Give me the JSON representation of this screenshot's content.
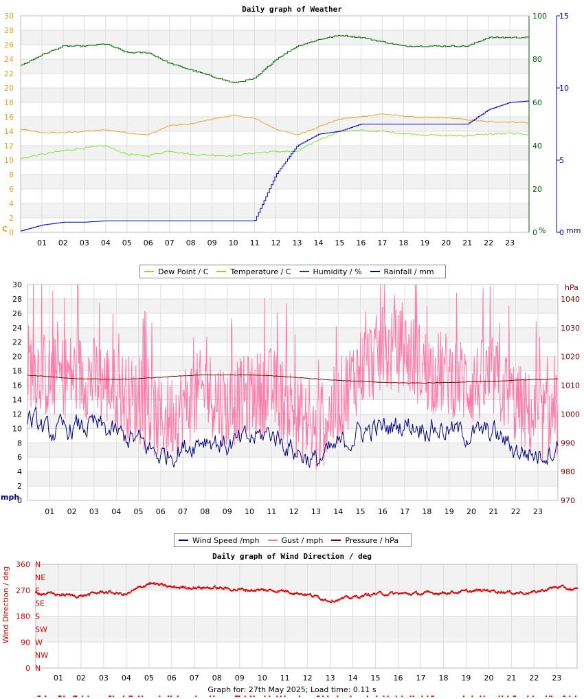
{
  "hours": [
    "01",
    "02",
    "03",
    "04",
    "05",
    "06",
    "07",
    "08",
    "09",
    "10",
    "11",
    "12",
    "13",
    "14",
    "15",
    "16",
    "17",
    "18",
    "19",
    "20",
    "21",
    "22",
    "23"
  ],
  "weather": {
    "title": "Daily graph of Weather",
    "left_unit": "C",
    "humidity_unit": "%",
    "rain_unit": "mm",
    "temp_ticks": [
      0,
      2,
      4,
      6,
      8,
      10,
      12,
      14,
      16,
      18,
      20,
      22,
      24,
      26,
      28,
      30
    ],
    "humidity_ticks": [
      0,
      20,
      40,
      60,
      80,
      100
    ],
    "rain_ticks": [
      0,
      5,
      10,
      15
    ],
    "legend": [
      {
        "label": "Dew Point / C",
        "color": "#80e030"
      },
      {
        "label": "Temperature / C",
        "color": "#f0a020"
      },
      {
        "label": "Humidity / %",
        "color": "#006400"
      },
      {
        "label": "Rainfall / mm",
        "color": "#0000c0"
      }
    ],
    "colors": {
      "temperature": "#f0a020",
      "dewpoint": "#80e030",
      "humidity": "#006400",
      "rainfall": "#0000c0",
      "left_axis": "#f0a020",
      "humidity_axis": "#006400",
      "rain_axis": "#0000c0"
    }
  },
  "wind": {
    "left_unit": "mph",
    "right_unit": "hPa",
    "speed_ticks": [
      0,
      2,
      4,
      6,
      8,
      10,
      12,
      14,
      16,
      18,
      20,
      22,
      24,
      26,
      28,
      30
    ],
    "pressure_ticks": [
      970,
      980,
      990,
      1000,
      1010,
      1020,
      1030,
      1040
    ],
    "legend": [
      {
        "label": "Wind Speed /mph",
        "color": "#000080"
      },
      {
        "label": "Gust / mph",
        "color": "#ff7aa8"
      },
      {
        "label": "Pressure / hPa",
        "color": "#800000"
      }
    ],
    "colors": {
      "speed": "#000080",
      "gust": "#ff7aa8",
      "pressure": "#800000"
    }
  },
  "direction": {
    "title": "Daily graph of Wind Direction / deg",
    "axis_label": "Wind Direction / deg",
    "deg_ticks": [
      0,
      90,
      180,
      270,
      360
    ],
    "compass": [
      "N",
      "NE",
      "E",
      "SE",
      "S",
      "SW",
      "W",
      "NW",
      "N"
    ],
    "color": "#e00000"
  },
  "footer": "Graph for: 27th May 2025; Load time: 0.11 s",
  "chart_data": [
    {
      "type": "line",
      "title": "Daily graph of Weather",
      "xlabel": "",
      "x": [
        0,
        1,
        2,
        3,
        4,
        5,
        6,
        7,
        8,
        9,
        10,
        11,
        12,
        13,
        14,
        15,
        16,
        17,
        18,
        19,
        20,
        21,
        22,
        23,
        23.9
      ],
      "ylim_left": [
        0,
        30
      ],
      "ylim_humidity": [
        0,
        100
      ],
      "ylim_rain": [
        0,
        15
      ],
      "series": [
        {
          "name": "Temperature / C",
          "axis": "left",
          "values": [
            14.3,
            13.8,
            13.8,
            14.0,
            14.2,
            13.8,
            13.5,
            14.8,
            15.0,
            15.7,
            16.2,
            15.8,
            14.3,
            13.5,
            14.6,
            15.7,
            16.0,
            16.4,
            16.1,
            15.9,
            15.9,
            15.6,
            15.3,
            15.3,
            15.2
          ]
        },
        {
          "name": "Dew Point / C",
          "axis": "left",
          "values": [
            10.2,
            10.8,
            11.3,
            11.7,
            12.0,
            10.8,
            10.6,
            11.3,
            10.8,
            10.7,
            10.6,
            11.0,
            11.2,
            11.2,
            12.8,
            14.0,
            14.1,
            14.0,
            13.7,
            13.5,
            13.4,
            13.4,
            13.6,
            13.7,
            13.6
          ]
        },
        {
          "name": "Humidity / %",
          "axis": "humidity",
          "values": [
            77,
            82,
            86,
            86,
            87,
            83,
            83,
            78,
            75,
            72,
            69,
            71,
            80,
            86,
            89,
            91,
            90,
            88,
            86,
            86,
            86,
            86,
            90,
            90,
            90
          ]
        },
        {
          "name": "Rainfall / mm",
          "axis": "rain",
          "values": [
            0.1,
            0.5,
            0.7,
            0.7,
            0.8,
            0.8,
            0.8,
            0.8,
            0.8,
            0.8,
            0.8,
            0.8,
            4.0,
            6.0,
            6.8,
            7.0,
            7.5,
            7.5,
            7.5,
            7.5,
            7.5,
            7.5,
            8.5,
            9.0,
            9.1
          ]
        }
      ]
    },
    {
      "type": "line",
      "title": "",
      "x": [
        0,
        1,
        2,
        3,
        4,
        5,
        6,
        7,
        8,
        9,
        10,
        11,
        12,
        13,
        14,
        15,
        16,
        17,
        18,
        19,
        20,
        21,
        22,
        23,
        23.9
      ],
      "ylim_left": [
        0,
        30
      ],
      "ylim_right": [
        970,
        1045
      ],
      "series": [
        {
          "name": "Wind Speed /mph",
          "axis": "left",
          "values": [
            11.5,
            9.3,
            10.0,
            10.4,
            9.2,
            8.2,
            6.2,
            7.2,
            8.8,
            7.6,
            8.5,
            9.4,
            7.0,
            5.3,
            7.5,
            9.5,
            10.0,
            10.6,
            10.2,
            9.7,
            9.2,
            9.5,
            7.0,
            6.3,
            7.5
          ]
        },
        {
          "name": "Gust / mph",
          "axis": "left",
          "values": [
            19.0,
            17.0,
            17.5,
            17.0,
            15.5,
            13.5,
            11.0,
            13.0,
            15.5,
            13.0,
            14.5,
            15.5,
            12.5,
            9.0,
            13.5,
            18.5,
            20.5,
            21.0,
            18.0,
            17.5,
            16.0,
            17.0,
            13.5,
            11.0,
            12.0
          ]
        },
        {
          "name": "Pressure / hPa",
          "axis": "right",
          "values": [
            1013.5,
            1013.0,
            1012.3,
            1012.2,
            1012.0,
            1012.3,
            1012.8,
            1013.3,
            1013.6,
            1013.6,
            1013.6,
            1013.3,
            1012.8,
            1012.2,
            1011.7,
            1011.4,
            1011.0,
            1010.8,
            1010.8,
            1011.0,
            1011.2,
            1011.3,
            1011.8,
            1012.0,
            1012.2
          ]
        }
      ]
    },
    {
      "type": "scatter",
      "title": "Daily graph of Wind Direction / deg",
      "ylabel": "Wind Direction / deg",
      "ylim": [
        0,
        360
      ],
      "x": [
        0,
        1,
        2,
        3,
        4,
        5,
        6,
        7,
        8,
        9,
        10,
        11,
        12,
        13,
        14,
        15,
        16,
        17,
        18,
        19,
        20,
        21,
        22,
        23,
        23.9
      ],
      "series": [
        {
          "name": "Wind Direction / deg",
          "values": [
            262,
            255,
            250,
            265,
            255,
            295,
            280,
            280,
            278,
            272,
            270,
            268,
            255,
            235,
            245,
            258,
            258,
            258,
            262,
            265,
            270,
            262,
            262,
            282,
            270
          ]
        }
      ]
    }
  ]
}
